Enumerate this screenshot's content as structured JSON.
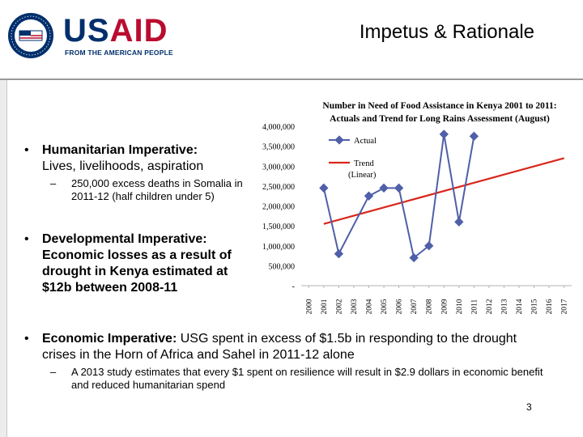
{
  "header": {
    "brand_us": "US",
    "brand_aid": "AID",
    "tagline": "FROM THE AMERICAN PEOPLE",
    "title": "Impetus & Rationale"
  },
  "bullets": [
    {
      "heading": "Humanitarian Imperative:",
      "text": "Lives, livelihoods, aspiration",
      "sub": "250,000 excess deaths in Somalia in 2011-12 (half children under 5)"
    },
    {
      "heading": "Developmental Imperative:",
      "text": "Economic losses as a result of drought in Kenya estimated at $12b between 2008-11"
    },
    {
      "heading": "Economic Imperative:",
      "text": "USG spent in excess of $1.5b in responding to the drought crises in the Horn of Africa and Sahel in 2011-12 alone",
      "sub": "A 2013 study estimates that every $1 spent on resilience will result in $2.9 dollars in economic benefit and reduced humanitarian spend"
    }
  ],
  "bullet_symbol": "•",
  "dash_symbol": "–",
  "page_number": "3",
  "colors": {
    "us_blue": "#002f6c",
    "aid_red": "#ba0c2f",
    "actual_line": "#4f5fa8",
    "trend_line": "#d9261c"
  },
  "chart_data": {
    "type": "line",
    "title_line1": "Number in Need of Food Assistance in Kenya 2001 to 2011:",
    "title_line2": "Actuals and Trend for Long Rains Assessment (August)",
    "x": [
      "2000",
      "2001",
      "2002",
      "2003",
      "2004",
      "2005",
      "2006",
      "2007",
      "2008",
      "2009",
      "2010",
      "2011",
      "2012",
      "2013",
      "2014",
      "2015",
      "2016",
      "2017"
    ],
    "ylim": [
      0,
      4000000
    ],
    "yticks": [
      "-",
      "500,000",
      "1,000,000",
      "1,500,000",
      "2,000,000",
      "2,500,000",
      "3,000,000",
      "3,500,000",
      "4,000,000"
    ],
    "series": [
      {
        "name": "Actual",
        "x": [
          "2001",
          "2002",
          "2004",
          "2005",
          "2006",
          "2007",
          "2008",
          "2009",
          "2010",
          "2011"
        ],
        "values": [
          2450000,
          800000,
          2250000,
          2450000,
          2450000,
          700000,
          1000000,
          3800000,
          1600000,
          3750000
        ]
      },
      {
        "name": "Trend (Linear)",
        "legend_line1": "Trend",
        "legend_line2": "(Linear)",
        "x": [
          "2001",
          "2017"
        ],
        "values": [
          1550000,
          3200000
        ]
      }
    ]
  }
}
